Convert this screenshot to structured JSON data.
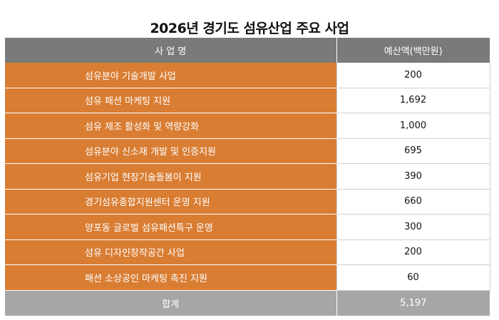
{
  "title": "2026년 경기도 섬유산업 주요 사업",
  "table": {
    "headers": [
      "사 업 명",
      "예산액(백만원)"
    ],
    "rows": [
      {
        "name": "섬유분야 기술개발 사업",
        "amount": "200"
      },
      {
        "name": "섬유 패션 마케팅 지원",
        "amount": "1,692"
      },
      {
        "name": "섬유 제조 활성화 및 역량강화",
        "amount": "1,000"
      },
      {
        "name": "섬유분야 신소재 개발 및 인증지원",
        "amount": "695"
      },
      {
        "name": "섬유기업 현장기술돌봄이 지원",
        "amount": "390"
      },
      {
        "name": "경기섬유종합지원센터 운영 지원",
        "amount": "660"
      },
      {
        "name": "양포동 글로벌 섬유패션특구 운영",
        "amount": "300"
      },
      {
        "name": "섬유 디자인창작공간 사업",
        "amount": "200"
      },
      {
        "name": "패션 소상공인 마케팅 촉진 지원",
        "amount": "60"
      }
    ],
    "total": {
      "label": "합계",
      "amount": "5,197"
    }
  },
  "colors": {
    "header_bg": "#7a7a7a",
    "row_name_bg": "#d97d33",
    "total_bg": "#a6a6a6"
  }
}
